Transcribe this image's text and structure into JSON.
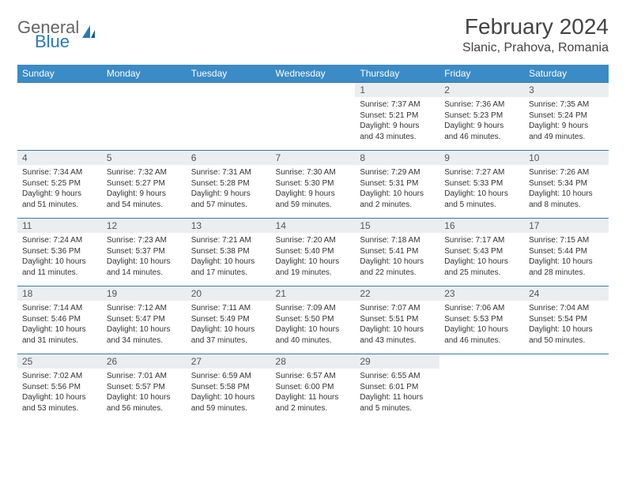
{
  "brand": {
    "general": "General",
    "blue": "Blue"
  },
  "title": "February 2024",
  "location": "Slanic, Prahova, Romania",
  "colors": {
    "header_bg": "#3b8bc6",
    "header_fg": "#ffffff",
    "daynum_bg": "#ebeef0",
    "row_border": "#3b7aa8",
    "brand_blue": "#2a7ab8"
  },
  "weekdays": [
    "Sunday",
    "Monday",
    "Tuesday",
    "Wednesday",
    "Thursday",
    "Friday",
    "Saturday"
  ],
  "weeks": [
    [
      null,
      null,
      null,
      null,
      {
        "n": "1",
        "sr": "Sunrise: 7:37 AM",
        "ss": "Sunset: 5:21 PM",
        "d1": "Daylight: 9 hours",
        "d2": "and 43 minutes."
      },
      {
        "n": "2",
        "sr": "Sunrise: 7:36 AM",
        "ss": "Sunset: 5:23 PM",
        "d1": "Daylight: 9 hours",
        "d2": "and 46 minutes."
      },
      {
        "n": "3",
        "sr": "Sunrise: 7:35 AM",
        "ss": "Sunset: 5:24 PM",
        "d1": "Daylight: 9 hours",
        "d2": "and 49 minutes."
      }
    ],
    [
      {
        "n": "4",
        "sr": "Sunrise: 7:34 AM",
        "ss": "Sunset: 5:25 PM",
        "d1": "Daylight: 9 hours",
        "d2": "and 51 minutes."
      },
      {
        "n": "5",
        "sr": "Sunrise: 7:32 AM",
        "ss": "Sunset: 5:27 PM",
        "d1": "Daylight: 9 hours",
        "d2": "and 54 minutes."
      },
      {
        "n": "6",
        "sr": "Sunrise: 7:31 AM",
        "ss": "Sunset: 5:28 PM",
        "d1": "Daylight: 9 hours",
        "d2": "and 57 minutes."
      },
      {
        "n": "7",
        "sr": "Sunrise: 7:30 AM",
        "ss": "Sunset: 5:30 PM",
        "d1": "Daylight: 9 hours",
        "d2": "and 59 minutes."
      },
      {
        "n": "8",
        "sr": "Sunrise: 7:29 AM",
        "ss": "Sunset: 5:31 PM",
        "d1": "Daylight: 10 hours",
        "d2": "and 2 minutes."
      },
      {
        "n": "9",
        "sr": "Sunrise: 7:27 AM",
        "ss": "Sunset: 5:33 PM",
        "d1": "Daylight: 10 hours",
        "d2": "and 5 minutes."
      },
      {
        "n": "10",
        "sr": "Sunrise: 7:26 AM",
        "ss": "Sunset: 5:34 PM",
        "d1": "Daylight: 10 hours",
        "d2": "and 8 minutes."
      }
    ],
    [
      {
        "n": "11",
        "sr": "Sunrise: 7:24 AM",
        "ss": "Sunset: 5:36 PM",
        "d1": "Daylight: 10 hours",
        "d2": "and 11 minutes."
      },
      {
        "n": "12",
        "sr": "Sunrise: 7:23 AM",
        "ss": "Sunset: 5:37 PM",
        "d1": "Daylight: 10 hours",
        "d2": "and 14 minutes."
      },
      {
        "n": "13",
        "sr": "Sunrise: 7:21 AM",
        "ss": "Sunset: 5:38 PM",
        "d1": "Daylight: 10 hours",
        "d2": "and 17 minutes."
      },
      {
        "n": "14",
        "sr": "Sunrise: 7:20 AM",
        "ss": "Sunset: 5:40 PM",
        "d1": "Daylight: 10 hours",
        "d2": "and 19 minutes."
      },
      {
        "n": "15",
        "sr": "Sunrise: 7:18 AM",
        "ss": "Sunset: 5:41 PM",
        "d1": "Daylight: 10 hours",
        "d2": "and 22 minutes."
      },
      {
        "n": "16",
        "sr": "Sunrise: 7:17 AM",
        "ss": "Sunset: 5:43 PM",
        "d1": "Daylight: 10 hours",
        "d2": "and 25 minutes."
      },
      {
        "n": "17",
        "sr": "Sunrise: 7:15 AM",
        "ss": "Sunset: 5:44 PM",
        "d1": "Daylight: 10 hours",
        "d2": "and 28 minutes."
      }
    ],
    [
      {
        "n": "18",
        "sr": "Sunrise: 7:14 AM",
        "ss": "Sunset: 5:46 PM",
        "d1": "Daylight: 10 hours",
        "d2": "and 31 minutes."
      },
      {
        "n": "19",
        "sr": "Sunrise: 7:12 AM",
        "ss": "Sunset: 5:47 PM",
        "d1": "Daylight: 10 hours",
        "d2": "and 34 minutes."
      },
      {
        "n": "20",
        "sr": "Sunrise: 7:11 AM",
        "ss": "Sunset: 5:49 PM",
        "d1": "Daylight: 10 hours",
        "d2": "and 37 minutes."
      },
      {
        "n": "21",
        "sr": "Sunrise: 7:09 AM",
        "ss": "Sunset: 5:50 PM",
        "d1": "Daylight: 10 hours",
        "d2": "and 40 minutes."
      },
      {
        "n": "22",
        "sr": "Sunrise: 7:07 AM",
        "ss": "Sunset: 5:51 PM",
        "d1": "Daylight: 10 hours",
        "d2": "and 43 minutes."
      },
      {
        "n": "23",
        "sr": "Sunrise: 7:06 AM",
        "ss": "Sunset: 5:53 PM",
        "d1": "Daylight: 10 hours",
        "d2": "and 46 minutes."
      },
      {
        "n": "24",
        "sr": "Sunrise: 7:04 AM",
        "ss": "Sunset: 5:54 PM",
        "d1": "Daylight: 10 hours",
        "d2": "and 50 minutes."
      }
    ],
    [
      {
        "n": "25",
        "sr": "Sunrise: 7:02 AM",
        "ss": "Sunset: 5:56 PM",
        "d1": "Daylight: 10 hours",
        "d2": "and 53 minutes."
      },
      {
        "n": "26",
        "sr": "Sunrise: 7:01 AM",
        "ss": "Sunset: 5:57 PM",
        "d1": "Daylight: 10 hours",
        "d2": "and 56 minutes."
      },
      {
        "n": "27",
        "sr": "Sunrise: 6:59 AM",
        "ss": "Sunset: 5:58 PM",
        "d1": "Daylight: 10 hours",
        "d2": "and 59 minutes."
      },
      {
        "n": "28",
        "sr": "Sunrise: 6:57 AM",
        "ss": "Sunset: 6:00 PM",
        "d1": "Daylight: 11 hours",
        "d2": "and 2 minutes."
      },
      {
        "n": "29",
        "sr": "Sunrise: 6:55 AM",
        "ss": "Sunset: 6:01 PM",
        "d1": "Daylight: 11 hours",
        "d2": "and 5 minutes."
      },
      null,
      null
    ]
  ]
}
